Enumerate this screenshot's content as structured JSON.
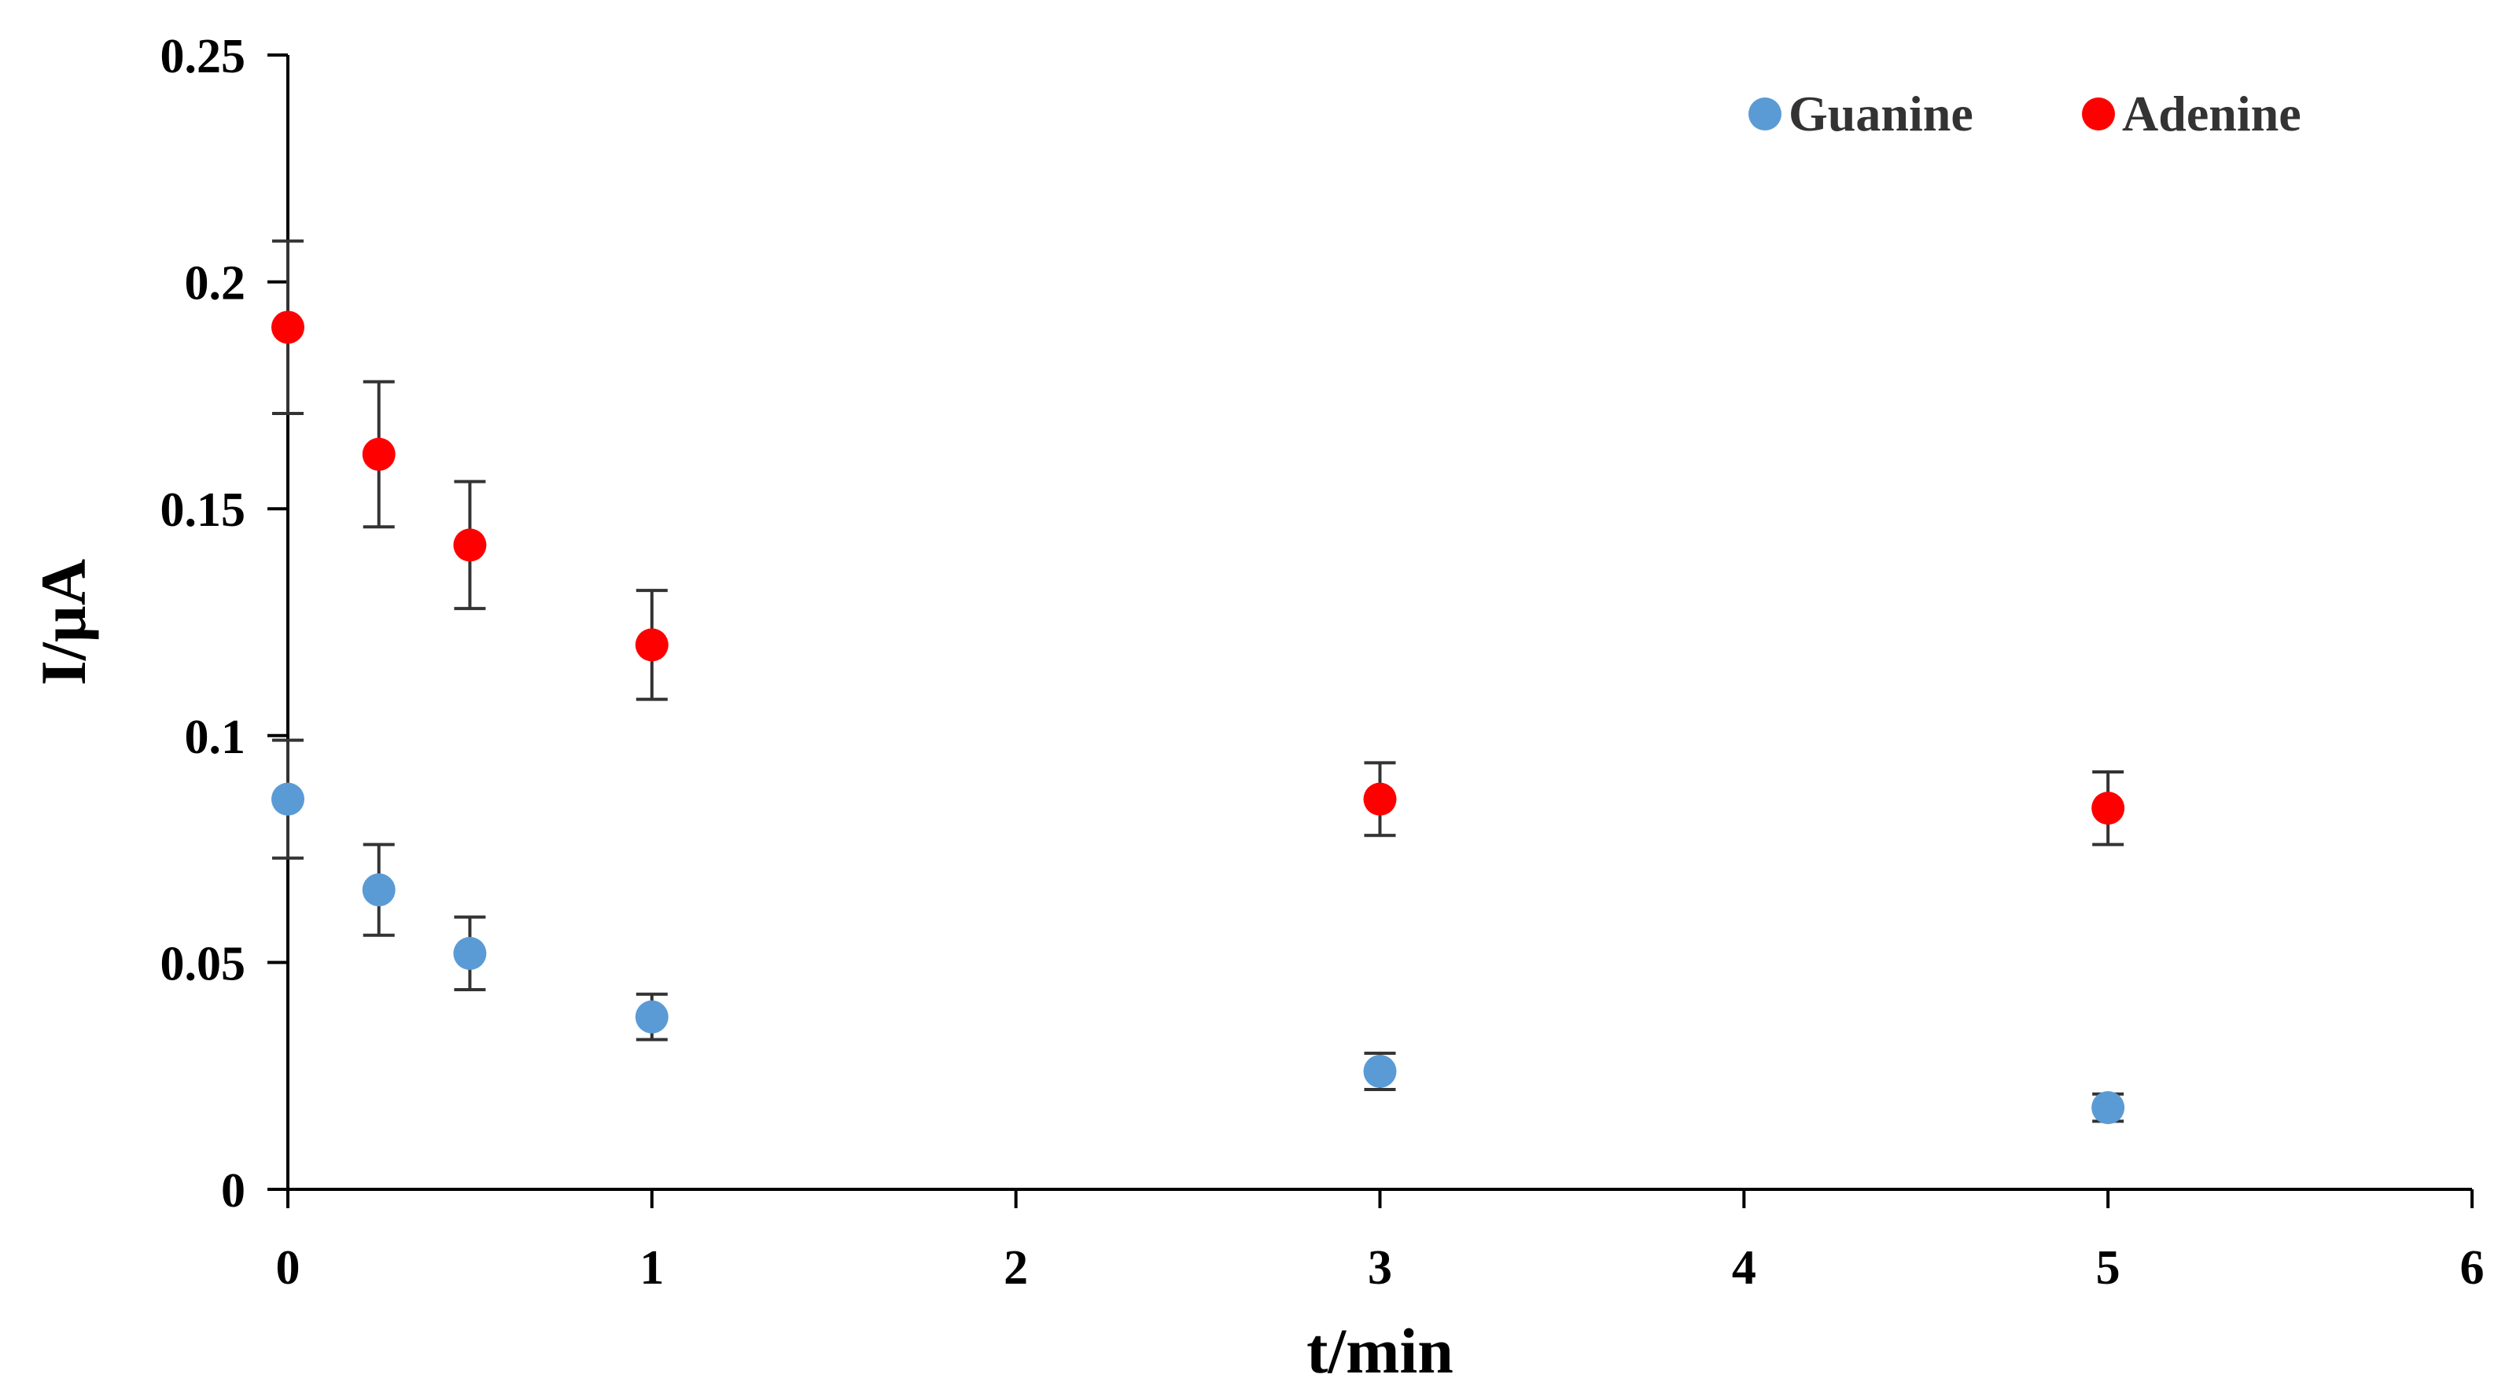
{
  "chart_data": {
    "type": "scatter",
    "xlabel": "t/min",
    "ylabel": "I/µA",
    "xlim": [
      0,
      6
    ],
    "ylim": [
      0,
      0.25
    ],
    "xticks": [
      0,
      1,
      2,
      3,
      4,
      5,
      6
    ],
    "yticks": [
      0,
      0.05,
      0.1,
      0.15,
      0.2,
      0.25
    ],
    "xtick_labels": [
      "0",
      "1",
      "2",
      "3",
      "4",
      "5",
      "6"
    ],
    "ytick_labels": [
      "0",
      "0.05",
      "0.1",
      "0.15",
      "0.2",
      "0.25"
    ],
    "grid": false,
    "legend_position": "top-right",
    "error_bars": true,
    "series": [
      {
        "name": "Guanine",
        "color": "#5b9bd5",
        "points": [
          {
            "x": 0,
            "y": 0.086,
            "err": 0.013
          },
          {
            "x": 0.25,
            "y": 0.066,
            "err": 0.01
          },
          {
            "x": 0.5,
            "y": 0.052,
            "err": 0.008
          },
          {
            "x": 1,
            "y": 0.038,
            "err": 0.005
          },
          {
            "x": 3,
            "y": 0.026,
            "err": 0.004
          },
          {
            "x": 5,
            "y": 0.018,
            "err": 0.003
          }
        ]
      },
      {
        "name": "Adenine",
        "color": "#ff0000",
        "points": [
          {
            "x": 0,
            "y": 0.19,
            "err": 0.019
          },
          {
            "x": 0.25,
            "y": 0.162,
            "err": 0.016
          },
          {
            "x": 0.5,
            "y": 0.142,
            "err": 0.014
          },
          {
            "x": 1,
            "y": 0.12,
            "err": 0.012
          },
          {
            "x": 3,
            "y": 0.086,
            "err": 0.008
          },
          {
            "x": 5,
            "y": 0.084,
            "err": 0.008
          }
        ]
      }
    ]
  }
}
